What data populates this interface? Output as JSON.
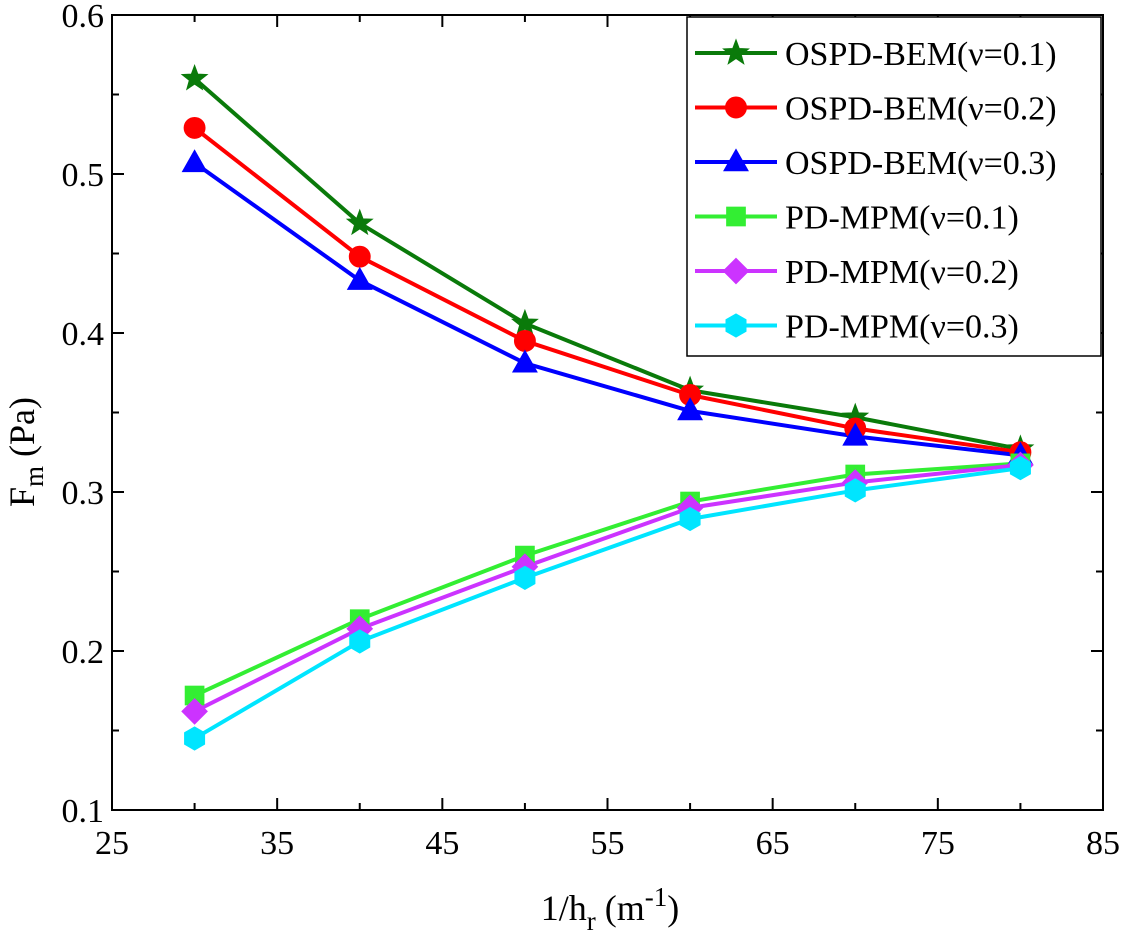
{
  "chart_data": {
    "type": "line",
    "title": "",
    "xlabel": {
      "main": "1/h",
      "sub": "r",
      "unit_open": " (m",
      "sup": "-1",
      "unit_close": ")"
    },
    "ylabel": {
      "main": "F",
      "sub": "m",
      "unit": " (Pa)"
    },
    "xlim": [
      25,
      85
    ],
    "ylim": [
      0.1,
      0.6
    ],
    "xticks": [
      "25",
      "35",
      "45",
      "55",
      "65",
      "75",
      "85"
    ],
    "yticks": [
      "0.1",
      "0.2",
      "0.3",
      "0.4",
      "0.5",
      "0.6"
    ],
    "x": [
      30,
      40,
      50,
      60,
      70,
      80
    ],
    "legend_position": "top-right",
    "series": [
      {
        "name": "OSPD-BEM(ν=0.1)",
        "color": "#0a7a0a",
        "marker": "star",
        "values": [
          0.56,
          0.469,
          0.406,
          0.364,
          0.347,
          0.327
        ]
      },
      {
        "name": "OSPD-BEM(ν=0.2)",
        "color": "#ff0000",
        "marker": "circle",
        "values": [
          0.529,
          0.448,
          0.395,
          0.361,
          0.34,
          0.325
        ]
      },
      {
        "name": "OSPD-BEM(ν=0.3)",
        "color": "#0000ff",
        "marker": "triangle",
        "values": [
          0.507,
          0.433,
          0.381,
          0.351,
          0.335,
          0.323
        ]
      },
      {
        "name": "PD-MPM(ν=0.1)",
        "color": "#33ee33",
        "marker": "square",
        "values": [
          0.172,
          0.22,
          0.26,
          0.294,
          0.311,
          0.318
        ]
      },
      {
        "name": "PD-MPM(ν=0.2)",
        "color": "#cc33ff",
        "marker": "diamond",
        "values": [
          0.162,
          0.214,
          0.253,
          0.29,
          0.306,
          0.317
        ]
      },
      {
        "name": "PD-MPM(ν=0.3)",
        "color": "#00e5ff",
        "marker": "hexagon",
        "values": [
          0.145,
          0.206,
          0.246,
          0.283,
          0.301,
          0.315
        ]
      }
    ]
  }
}
